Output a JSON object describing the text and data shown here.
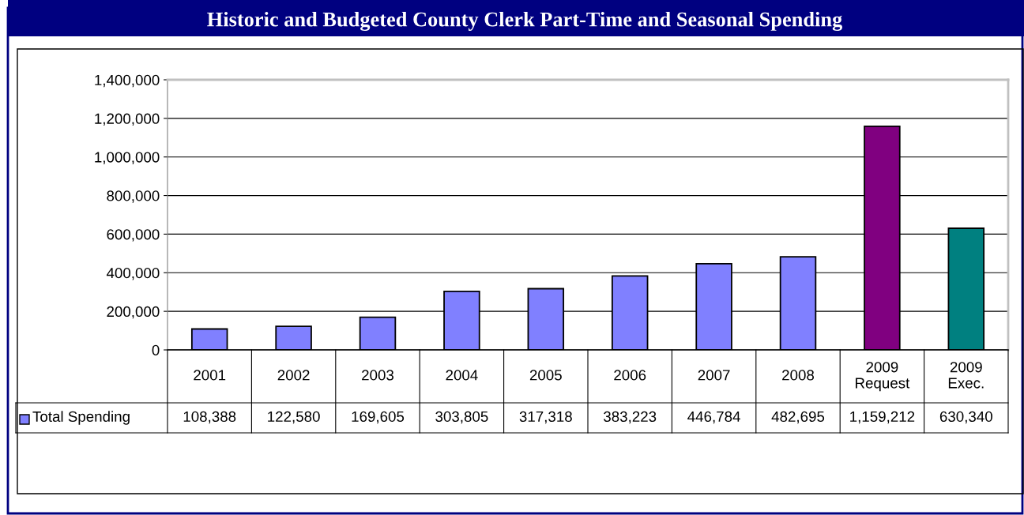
{
  "chart_data": {
    "type": "bar",
    "title": "Historic and Budgeted County Clerk Part-Time and Seasonal Spending",
    "categories": [
      "2001",
      "2002",
      "2003",
      "2004",
      "2005",
      "2006",
      "2007",
      "2008",
      "2009\nRequest",
      "2009\nExec."
    ],
    "series": [
      {
        "name": "Total Spending",
        "color": "#8080ff",
        "colors": [
          "#8080ff",
          "#8080ff",
          "#8080ff",
          "#8080ff",
          "#8080ff",
          "#8080ff",
          "#8080ff",
          "#8080ff",
          "#800080",
          "#008080"
        ],
        "values": [
          108388,
          122580,
          169605,
          303805,
          317318,
          383223,
          446784,
          482695,
          1159212,
          630340
        ],
        "value_labels": [
          "108,388",
          "122,580",
          "169,605",
          "303,805",
          "317,318",
          "383,223",
          "446,784",
          "482,695",
          "1,159,212",
          "630,340"
        ]
      }
    ],
    "ylim": [
      0,
      1400000
    ],
    "yticks": [
      {
        "value": 0,
        "label": "0"
      },
      {
        "value": 200000,
        "label": "200,000"
      },
      {
        "value": 400000,
        "label": "400,000"
      },
      {
        "value": 600000,
        "label": "600,000"
      },
      {
        "value": 800000,
        "label": "800,000"
      },
      {
        "value": 1000000,
        "label": "1,000,000"
      },
      {
        "value": 1200000,
        "label": "1,200,000"
      },
      {
        "value": 1400000,
        "label": "1,400,000"
      }
    ],
    "grid": "y",
    "legend": "bottom"
  }
}
